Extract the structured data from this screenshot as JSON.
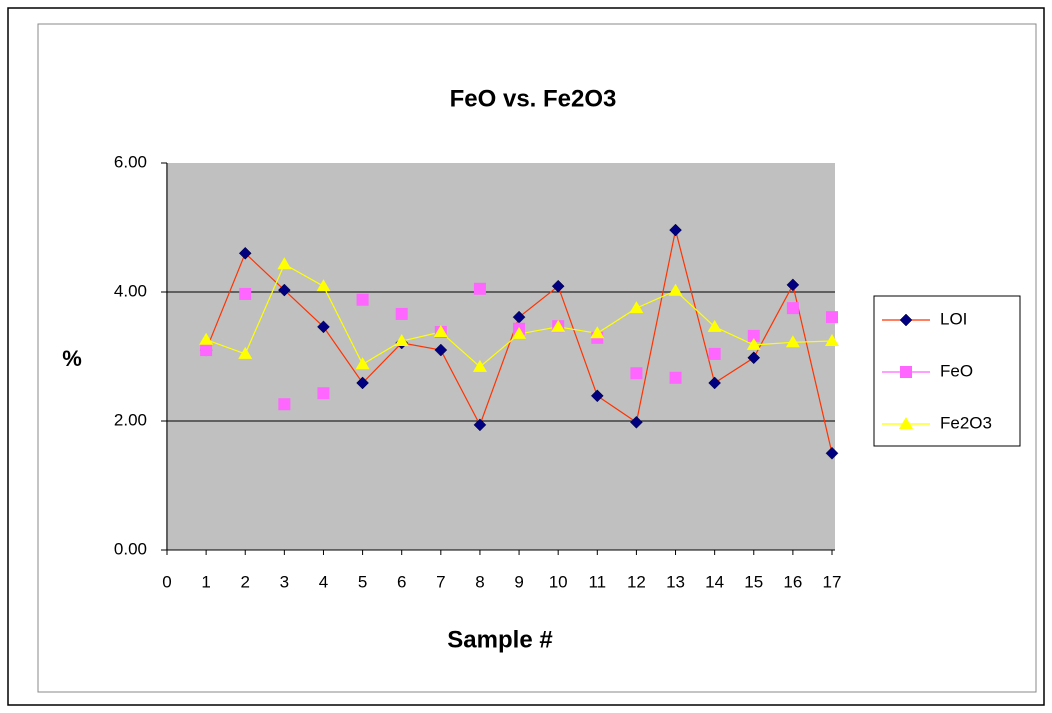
{
  "chart_data": {
    "type": "line",
    "title": "FeO vs. Fe2O3",
    "xlabel": "Sample #",
    "ylabel": "%",
    "x": [
      1,
      2,
      3,
      4,
      5,
      6,
      7,
      8,
      9,
      10,
      11,
      12,
      13,
      14,
      15,
      16,
      17
    ],
    "series": [
      {
        "name": "LOI",
        "color": "#ff3300",
        "marker_color": "#000080",
        "marker": "diamond",
        "line": true,
        "values": [
          3.1,
          4.6,
          4.03,
          3.46,
          2.59,
          3.21,
          3.1,
          1.94,
          3.61,
          4.09,
          2.39,
          1.98,
          4.96,
          2.59,
          2.98,
          4.11,
          1.5
        ]
      },
      {
        "name": "FeO",
        "color": "#ff66ff",
        "marker_color": "#ff66ff",
        "marker": "square",
        "line": false,
        "values": [
          3.1,
          3.97,
          2.26,
          2.43,
          3.88,
          3.66,
          3.38,
          4.05,
          3.43,
          3.47,
          3.29,
          2.74,
          2.67,
          3.04,
          3.32,
          3.75,
          3.61
        ]
      },
      {
        "name": "Fe2O3",
        "color": "#ffff00",
        "marker_color": "#ffff00",
        "marker": "triangle",
        "line": true,
        "values": [
          3.26,
          3.04,
          4.43,
          4.09,
          2.88,
          3.24,
          3.38,
          2.84,
          3.35,
          3.46,
          3.36,
          3.75,
          4.02,
          3.46,
          3.18,
          3.22,
          3.24
        ]
      }
    ],
    "xlim": [
      0,
      17
    ],
    "xticks": [
      0,
      1,
      2,
      3,
      4,
      5,
      6,
      7,
      8,
      9,
      10,
      11,
      12,
      13,
      14,
      15,
      16,
      17
    ],
    "ylim": [
      0,
      6
    ],
    "yticks": [
      {
        "value": 0,
        "label": "0.00"
      },
      {
        "value": 2,
        "label": "2.00"
      },
      {
        "value": 4,
        "label": "4.00"
      },
      {
        "value": 6,
        "label": "6.00"
      }
    ],
    "grid": true,
    "legend": "right",
    "plot_background": "#c0c0c0"
  }
}
